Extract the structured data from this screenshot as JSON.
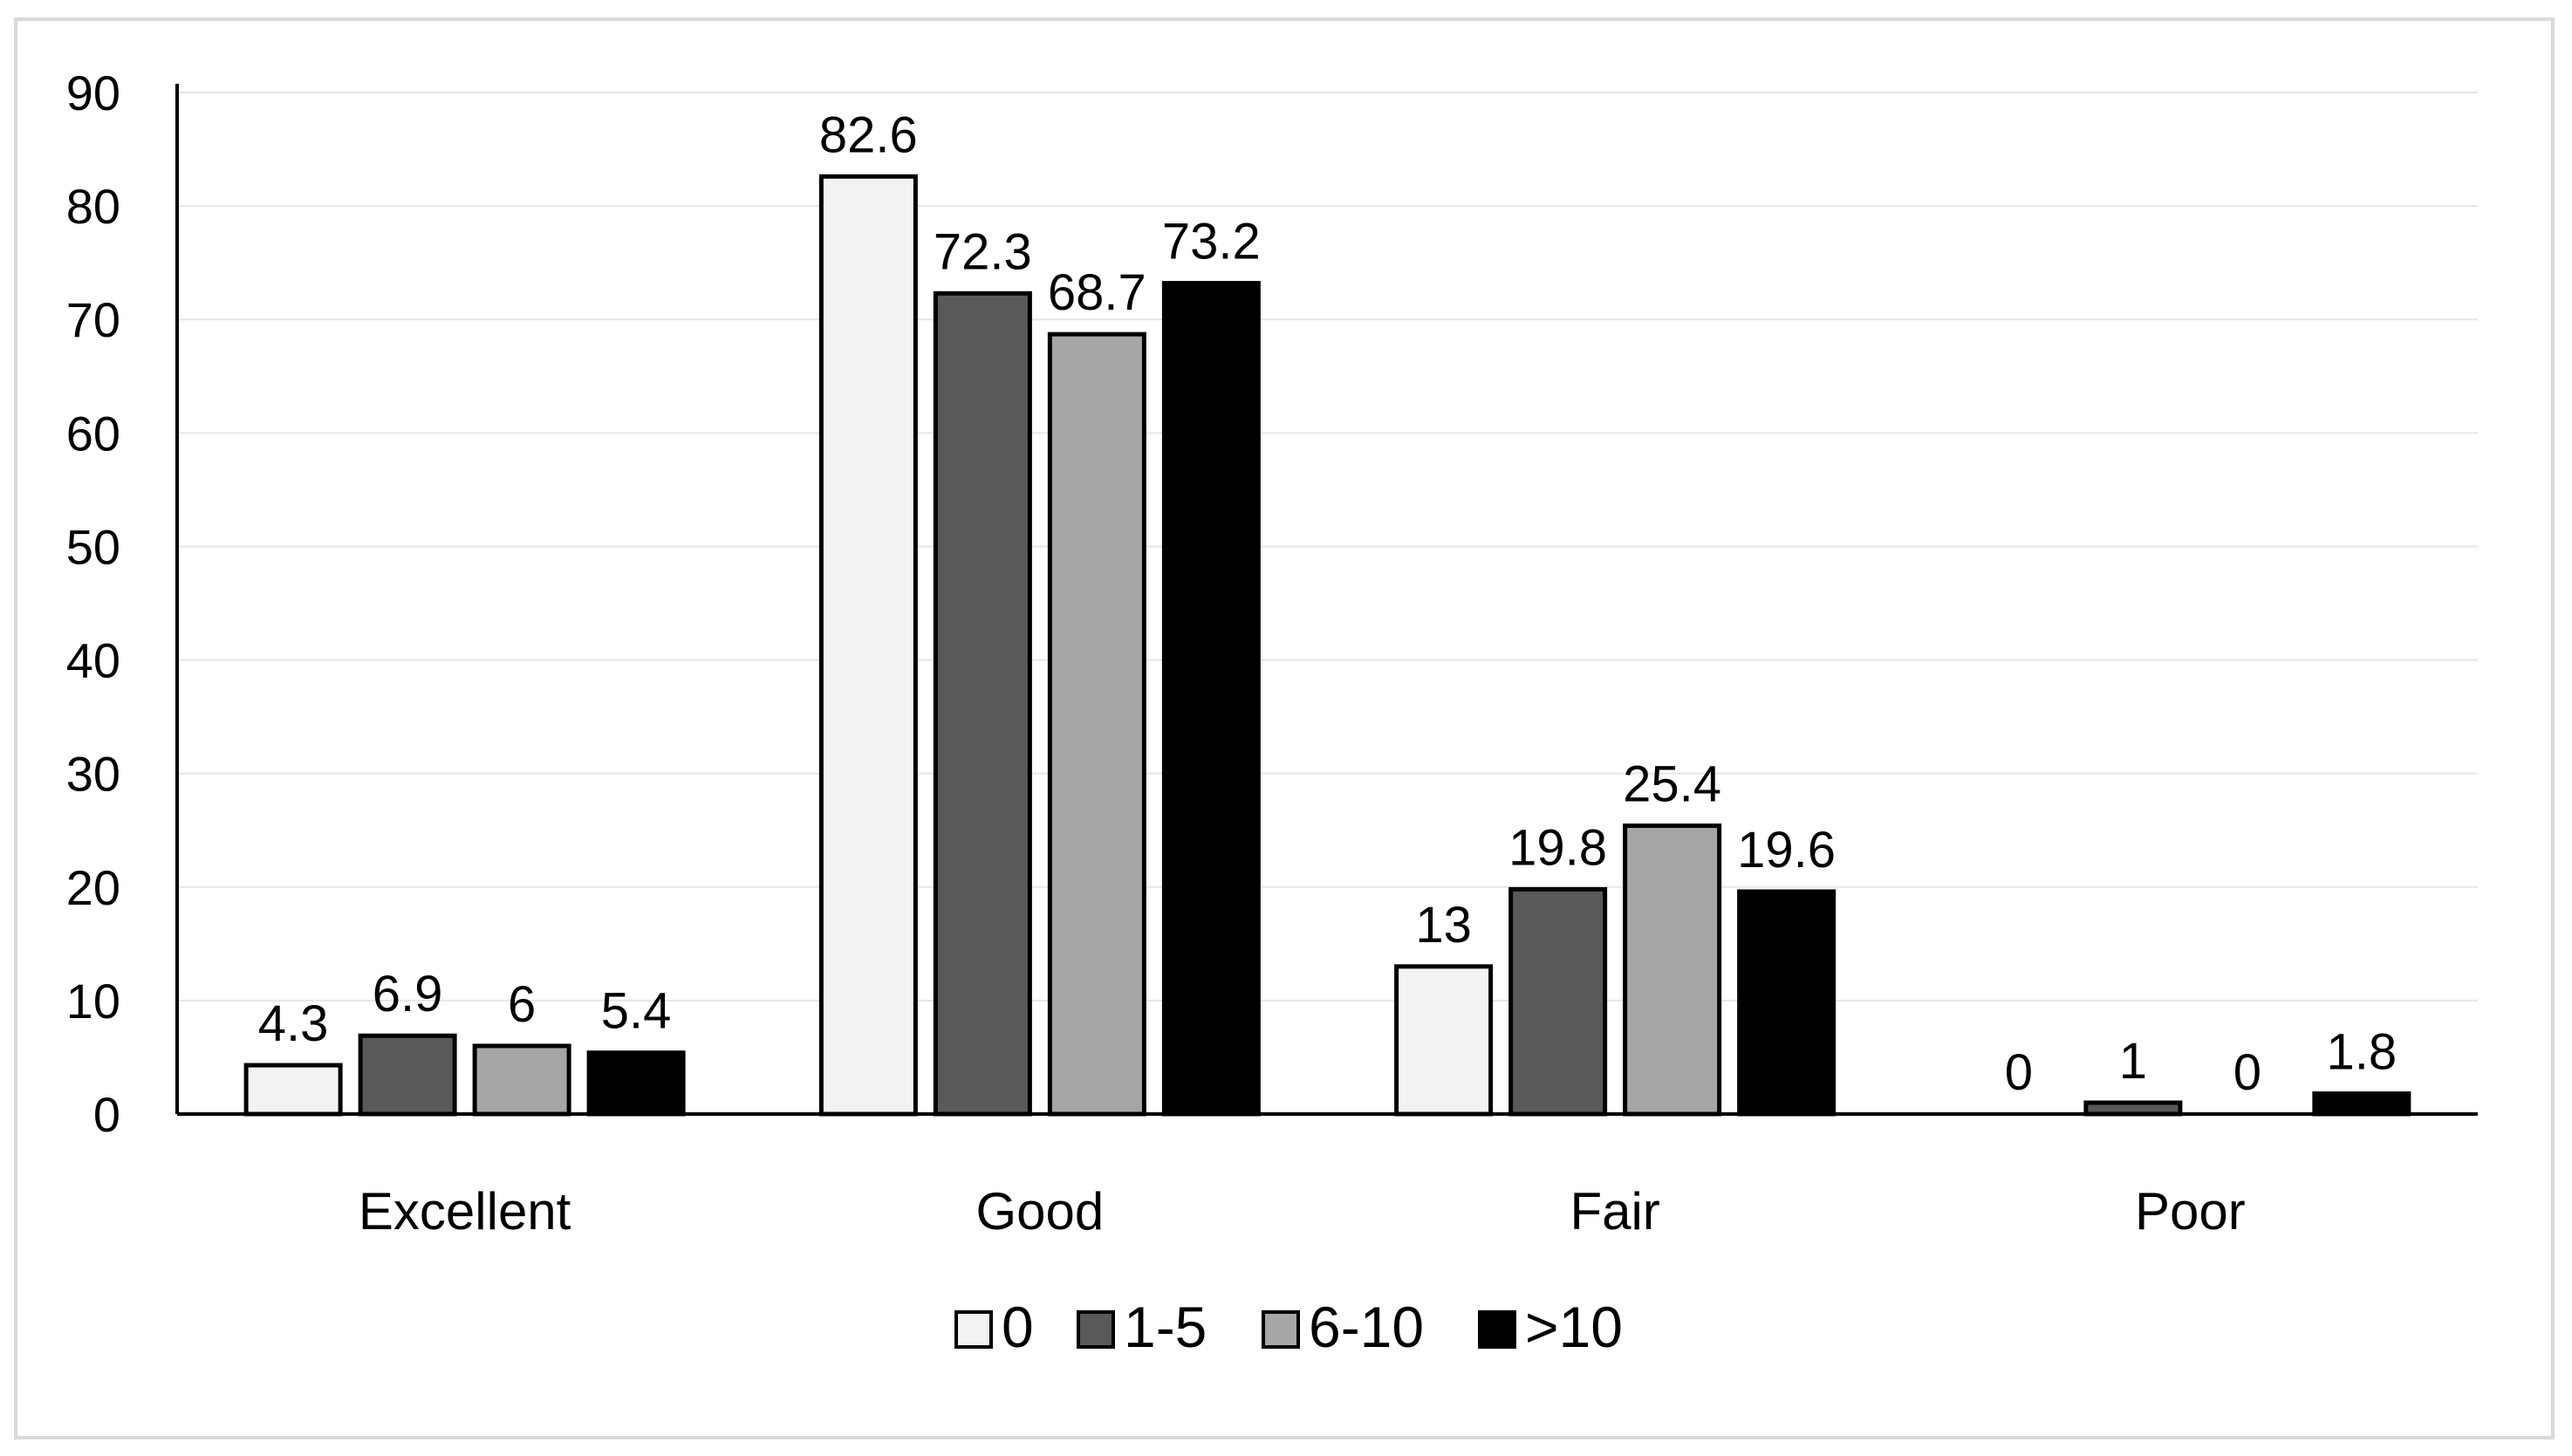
{
  "chart_data": {
    "type": "bar",
    "title": "",
    "xlabel": "",
    "ylabel": "",
    "ylim": [
      0,
      90
    ],
    "yticks": [
      0,
      10,
      20,
      30,
      40,
      50,
      60,
      70,
      80,
      90
    ],
    "ytick_labels": [
      "0",
      "10",
      "20",
      "30",
      "40",
      "50",
      "60",
      "70",
      "80",
      "90"
    ],
    "grid": true,
    "legend_position": "bottom-center",
    "categories": [
      "Excellent",
      "Good",
      "Fair",
      "Poor"
    ],
    "series": [
      {
        "name": "0",
        "color": "#f2f2f2",
        "values": [
          4.3,
          82.6,
          13,
          0
        ],
        "labels": [
          "4.3",
          "82.6",
          "13",
          "0"
        ]
      },
      {
        "name": "1-5",
        "color": "#595959",
        "values": [
          6.9,
          72.3,
          19.8,
          1
        ],
        "labels": [
          "6.9",
          "72.3",
          "19.8",
          "1"
        ]
      },
      {
        "name": "6-10",
        "color": "#a6a6a6",
        "values": [
          6,
          68.7,
          25.4,
          0
        ],
        "labels": [
          "6",
          "68.7",
          "25.4",
          "0"
        ]
      },
      {
        "name": ">10",
        "color": "#000000",
        "values": [
          5.4,
          73.2,
          19.6,
          1.8
        ],
        "labels": [
          "5.4",
          "73.2",
          "19.6",
          "1.8"
        ]
      }
    ]
  }
}
